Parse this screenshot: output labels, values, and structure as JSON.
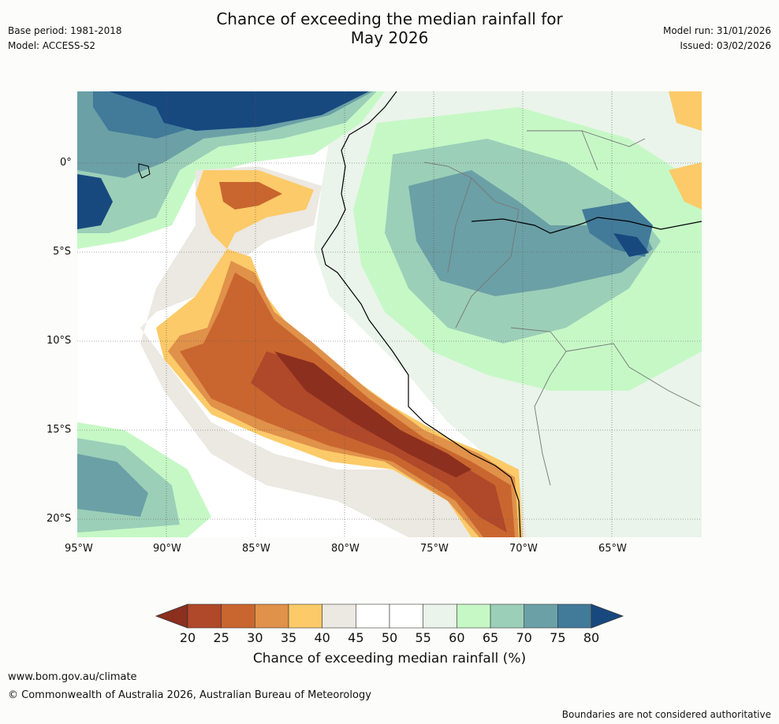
{
  "header": {
    "title_line1": "Chance of exceeding the median rainfall for",
    "title_line2": "May 2026",
    "base_period": "Base period: 1981-2018",
    "model": "Model: ACCESS-S2",
    "model_run": "Model run: 31/01/2026",
    "issued": "Issued: 03/02/2026"
  },
  "axes": {
    "lat_labels": [
      "0°",
      "5°S",
      "10°S",
      "15°S",
      "20°S"
    ],
    "lon_labels": [
      "95°W",
      "90°W",
      "85°W",
      "80°W",
      "75°W",
      "70°W",
      "65°W"
    ]
  },
  "legend": {
    "title": "Chance of exceeding median rainfall (%)",
    "ticks": [
      "20",
      "25",
      "30",
      "35",
      "40",
      "45",
      "50",
      "55",
      "60",
      "65",
      "70",
      "75",
      "80"
    ],
    "colors": [
      "#8c2f1e",
      "#b0482a",
      "#c9662f",
      "#e0914a",
      "#fcca68",
      "#ece8e2",
      "#ffffff",
      "#ffffff",
      "#eaf4ea",
      "#c6f8c6",
      "#9ccfb8",
      "#6ba0a6",
      "#427a99",
      "#17497f"
    ]
  },
  "footer": {
    "website": "www.bom.gov.au/climate",
    "copyright": "© Commonwealth of Australia 2026, Australian Bureau of Meteorology",
    "disclaimer": "Boundaries are not considered authoritative"
  }
}
